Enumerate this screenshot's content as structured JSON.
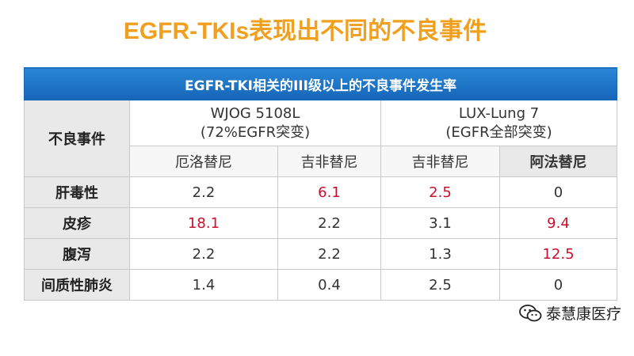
{
  "title": "EGFR-TKIs表现出不同的不良事件",
  "table": {
    "caption": "EGFR-TKI相关的III级以上的不良事件发生率",
    "corner": "不良事件",
    "groups": [
      {
        "name": "WJOG 5108L",
        "note": "(72%EGFR突变)"
      },
      {
        "name": "LUX-Lung 7",
        "note": "(EGFR全部突变)"
      }
    ],
    "columns": [
      "厄洛替尼",
      "吉非替尼",
      "吉非替尼",
      "阿法替尼"
    ],
    "bold_column": 3,
    "rows": [
      {
        "label": "肝毒性",
        "cells": [
          "2.2",
          "6.1",
          "2.5",
          "0"
        ]
      },
      {
        "label": "皮疹",
        "cells": [
          "18.1",
          "2.2",
          "3.1",
          "9.4"
        ]
      },
      {
        "label": "腹泻",
        "cells": [
          "2.2",
          "2.2",
          "1.3",
          "12.5"
        ]
      },
      {
        "label": "间质性肺炎",
        "cells": [
          "1.4",
          "0.4",
          "2.5",
          "0"
        ]
      }
    ],
    "highlight_color": "#c8102e",
    "highlighted": [
      [
        0,
        1
      ],
      [
        0,
        2
      ],
      [
        1,
        0
      ],
      [
        1,
        3
      ],
      [
        2,
        3
      ]
    ]
  },
  "watermark": "泰慧康医疗"
}
